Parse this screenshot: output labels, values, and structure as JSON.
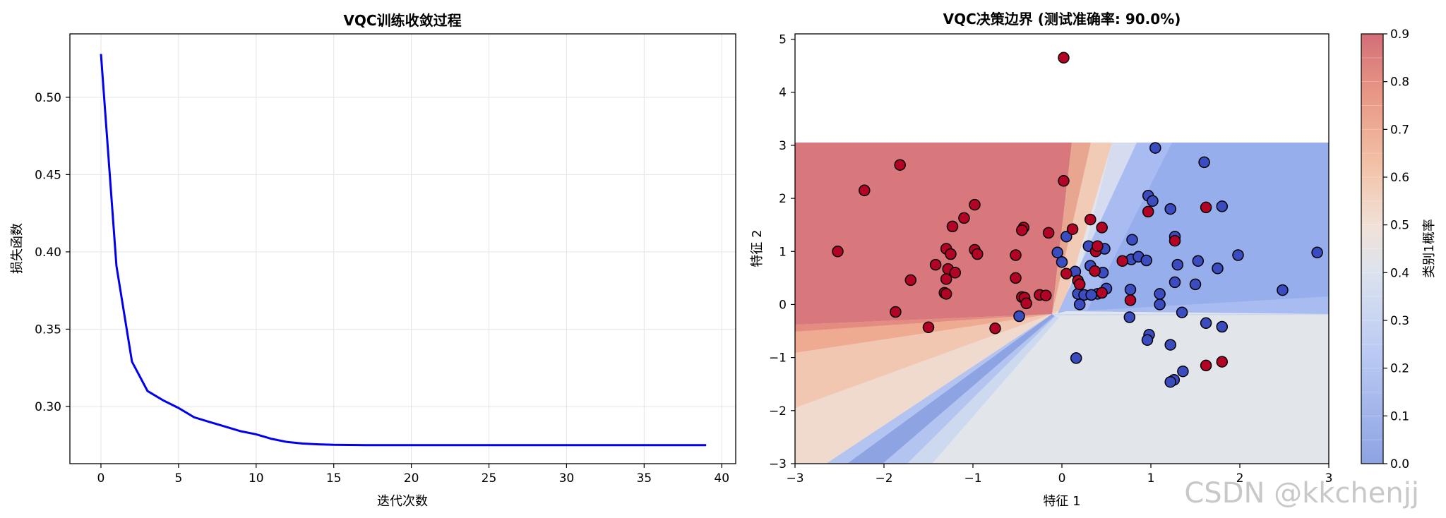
{
  "watermark": "CSDN @kkchenjj",
  "chart_data": [
    {
      "type": "line",
      "title": "VQC训练收敛过程",
      "xlabel": "迭代次数",
      "ylabel": "损失函数",
      "xlim": [
        -2,
        40.9
      ],
      "ylim": [
        0.263,
        0.541
      ],
      "xticks": [
        0,
        5,
        10,
        15,
        20,
        25,
        30,
        35,
        40
      ],
      "yticks": [
        0.3,
        0.35,
        0.4,
        0.45,
        0.5
      ],
      "ytick_labels": [
        "0.30",
        "0.35",
        "0.40",
        "0.45",
        "0.50"
      ],
      "grid": true,
      "line_color": "#0000ee",
      "series": [
        {
          "x": [
            0,
            1,
            2,
            3,
            4,
            5,
            6,
            7,
            8,
            9,
            10,
            11,
            12,
            13,
            14,
            15,
            16,
            17,
            18,
            19,
            20,
            21,
            22,
            23,
            24,
            25,
            26,
            27,
            28,
            29,
            30,
            31,
            32,
            33,
            34,
            35,
            36,
            37,
            38,
            39
          ],
          "values": [
            0.528,
            0.391,
            0.329,
            0.31,
            0.304,
            0.299,
            0.293,
            0.29,
            0.287,
            0.284,
            0.282,
            0.279,
            0.277,
            0.276,
            0.2755,
            0.2752,
            0.2751,
            0.275,
            0.275,
            0.275,
            0.275,
            0.275,
            0.275,
            0.275,
            0.275,
            0.275,
            0.275,
            0.275,
            0.275,
            0.275,
            0.275,
            0.275,
            0.275,
            0.275,
            0.275,
            0.275,
            0.275,
            0.275,
            0.275,
            0.275
          ]
        }
      ]
    },
    {
      "type": "scatter",
      "title": "VQC决策边界 (测试准确率: 90.0%)",
      "xlabel": "特征 1",
      "ylabel": "特征 2",
      "xlim": [
        -3,
        3
      ],
      "ylim": [
        -3,
        5.1
      ],
      "xticks": [
        -3,
        -2,
        -1,
        0,
        1,
        2,
        3
      ],
      "xtick_labels": [
        "−3",
        "−2",
        "−1",
        "0",
        "1",
        "2",
        "3"
      ],
      "yticks": [
        -3,
        -2,
        -1,
        0,
        1,
        2,
        3,
        4,
        5
      ],
      "ytick_labels": [
        "−3",
        "−2",
        "−1",
        "0",
        "1",
        "2",
        "3",
        "4",
        "5"
      ],
      "contour": {
        "note_colors": [
          "#8da3e2",
          "#a9bcf2",
          "#cdd9ee",
          "#e2e5ea",
          "#f2cbb7",
          "#eda58a",
          "#d8777c"
        ],
        "x_range": [
          -3,
          3
        ],
        "y_range": [
          -3,
          3
        ]
      },
      "colorbar": {
        "label": "类别1概率",
        "ticks": [
          0.0,
          0.1,
          0.2,
          0.3,
          0.4,
          0.5,
          0.6,
          0.7,
          0.8,
          0.9
        ],
        "tick_labels": [
          "0.0",
          "0.1",
          "0.2",
          "0.3",
          "0.4",
          "0.5",
          "0.6",
          "0.7",
          "0.8",
          "0.9"
        ],
        "range": [
          0,
          0.9
        ]
      },
      "series": [
        {
          "color": "#3b4cc0",
          "points": [
            [
              1.05,
              2.95
            ],
            [
              1.6,
              2.68
            ],
            [
              0.97,
              2.05
            ],
            [
              1.02,
              1.95
            ],
            [
              1.22,
              1.8
            ],
            [
              1.8,
              1.85
            ],
            [
              0.05,
              1.28
            ],
            [
              1.27,
              1.28
            ],
            [
              -0.05,
              0.98
            ],
            [
              0.3,
              1.1
            ],
            [
              0.48,
              1.05
            ],
            [
              0.78,
              0.85
            ],
            [
              0.86,
              0.9
            ],
            [
              0.95,
              0.83
            ],
            [
              1.53,
              0.82
            ],
            [
              1.98,
              0.93
            ],
            [
              2.87,
              0.98
            ],
            [
              0.0,
              0.8
            ],
            [
              0.32,
              0.73
            ],
            [
              0.46,
              0.6
            ],
            [
              1.3,
              0.75
            ],
            [
              1.75,
              0.68
            ],
            [
              0.15,
              0.62
            ],
            [
              0.4,
              0.2
            ],
            [
              0.5,
              0.3
            ],
            [
              0.18,
              0.2
            ],
            [
              0.25,
              0.18
            ],
            [
              0.33,
              0.18
            ],
            [
              1.27,
              0.42
            ],
            [
              1.5,
              0.38
            ],
            [
              0.77,
              0.28
            ],
            [
              1.1,
              0.2
            ],
            [
              2.48,
              0.27
            ],
            [
              0.2,
              0.0
            ],
            [
              1.1,
              0.0
            ],
            [
              -0.48,
              -0.22
            ],
            [
              0.76,
              -0.24
            ],
            [
              1.35,
              -0.15
            ],
            [
              1.62,
              -0.35
            ],
            [
              1.8,
              -0.42
            ],
            [
              0.98,
              -0.57
            ],
            [
              0.96,
              -0.67
            ],
            [
              1.22,
              -0.76
            ],
            [
              0.16,
              -1.01
            ],
            [
              1.36,
              -1.26
            ],
            [
              1.26,
              -1.42
            ],
            [
              1.22,
              -1.46
            ],
            [
              0.79,
              1.22
            ]
          ]
        },
        {
          "color": "#b40426",
          "points": [
            [
              0.02,
              4.65
            ],
            [
              -1.82,
              2.63
            ],
            [
              -2.22,
              2.15
            ],
            [
              -0.98,
              1.88
            ],
            [
              -1.1,
              1.63
            ],
            [
              -1.23,
              1.47
            ],
            [
              0.02,
              2.33
            ],
            [
              0.97,
              1.75
            ],
            [
              1.62,
              1.83
            ],
            [
              0.32,
              1.6
            ],
            [
              0.45,
              1.45
            ],
            [
              0.12,
              1.42
            ],
            [
              -0.43,
              1.45
            ],
            [
              -0.45,
              1.4
            ],
            [
              -0.15,
              1.35
            ],
            [
              1.27,
              1.2
            ],
            [
              -2.52,
              1.0
            ],
            [
              -1.3,
              1.05
            ],
            [
              -0.98,
              1.03
            ],
            [
              -0.95,
              0.95
            ],
            [
              -1.25,
              0.95
            ],
            [
              -0.52,
              0.93
            ],
            [
              0.38,
              1.0
            ],
            [
              0.4,
              1.1
            ],
            [
              0.68,
              0.82
            ],
            [
              -1.42,
              0.75
            ],
            [
              -1.28,
              0.67
            ],
            [
              -1.2,
              0.6
            ],
            [
              0.05,
              0.58
            ],
            [
              0.37,
              0.63
            ],
            [
              -1.3,
              0.48
            ],
            [
              -1.7,
              0.46
            ],
            [
              -0.52,
              0.5
            ],
            [
              0.18,
              0.45
            ],
            [
              0.2,
              0.38
            ],
            [
              -1.32,
              0.22
            ],
            [
              -1.3,
              0.2
            ],
            [
              -0.45,
              0.14
            ],
            [
              -0.42,
              0.13
            ],
            [
              -0.25,
              0.18
            ],
            [
              -0.18,
              0.17
            ],
            [
              0.45,
              0.22
            ],
            [
              0.77,
              0.08
            ],
            [
              -0.4,
              0.02
            ],
            [
              -1.87,
              -0.14
            ],
            [
              -1.5,
              -0.43
            ],
            [
              -0.75,
              -0.45
            ],
            [
              1.62,
              -1.15
            ],
            [
              1.8,
              -1.08
            ]
          ]
        }
      ]
    }
  ]
}
